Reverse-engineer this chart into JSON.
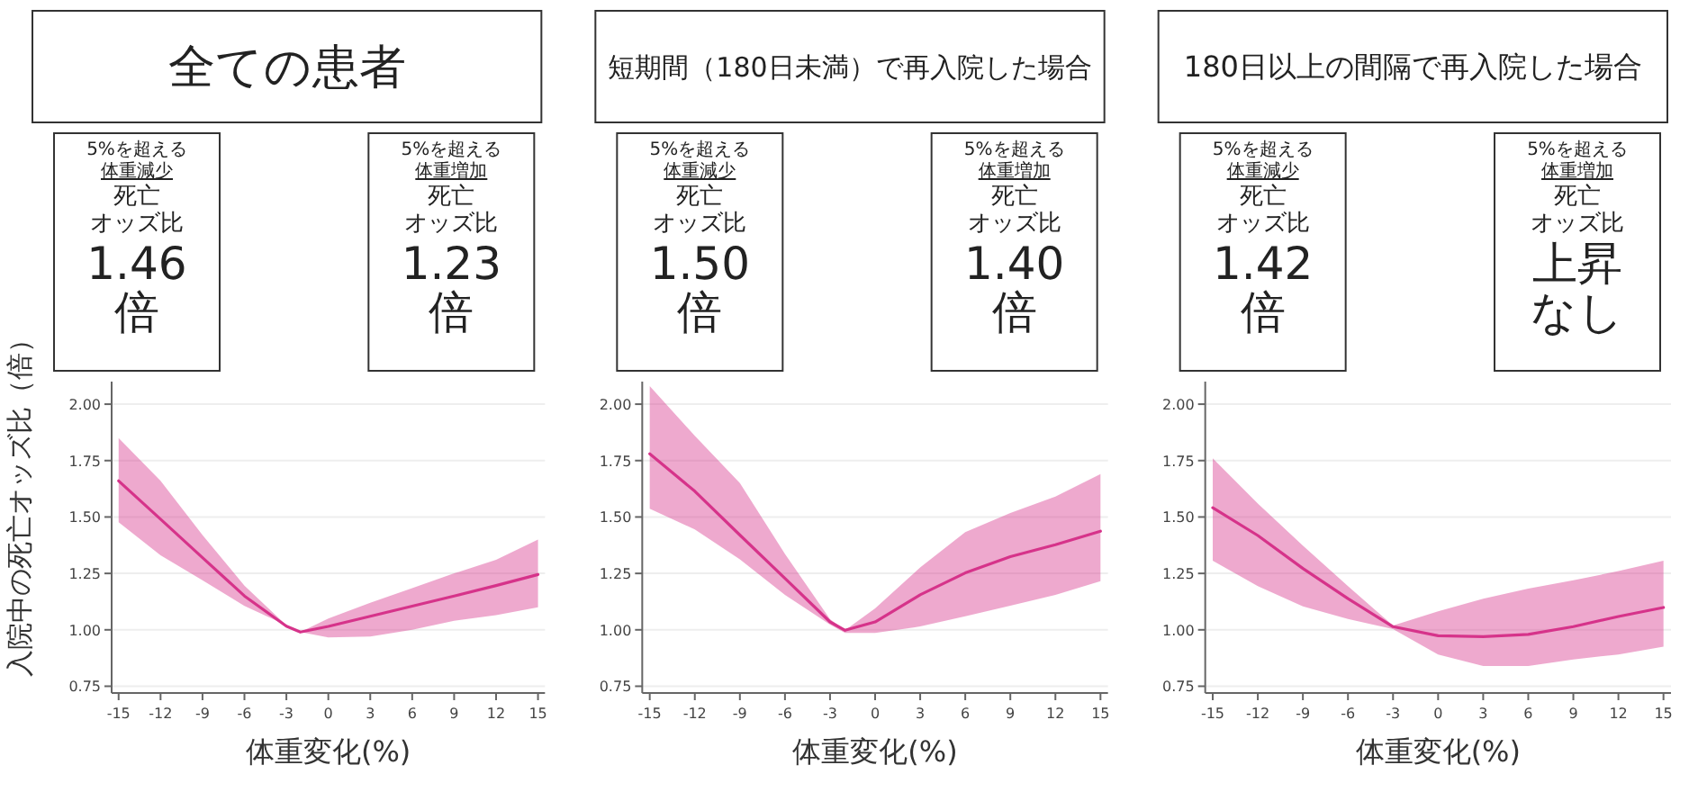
{
  "chart_data": [
    {
      "type": "line",
      "title": "全ての患者",
      "xlabel": "体重変化(%)",
      "ylabel": "入院中の死亡オッズ比（倍）",
      "grid": "y",
      "xlim": [
        -15.5,
        15.5
      ],
      "ylim": [
        0.72,
        2.1
      ],
      "xticks": [
        -15,
        -12,
        -9,
        -6,
        -3,
        0,
        3,
        6,
        9,
        12,
        15
      ],
      "yticks": [
        {
          "value": 0.75,
          "label": "0.75"
        },
        {
          "value": 1.0,
          "label": "1.00"
        },
        {
          "value": 1.25,
          "label": "1.25"
        },
        {
          "value": 1.5,
          "label": "1.50"
        },
        {
          "value": 1.75,
          "label": "1.75"
        },
        {
          "value": 2.0,
          "label": "2.00"
        }
      ],
      "annotations": [
        "5%を超える",
        "体重減少",
        "死亡",
        "オッズ比",
        "1.46",
        "倍",
        "5%を超える",
        "体重増加",
        "死亡",
        "オッズ比",
        "1.23",
        "倍"
      ],
      "series": [
        {
          "color": "#d6338a",
          "x": [
            -15,
            -12,
            -9,
            -6,
            -3,
            -2,
            0,
            3,
            6,
            9,
            12,
            15
          ],
          "values": [
            1.66,
            1.49,
            1.32,
            1.15,
            1.016,
            0.99,
            1.015,
            1.06,
            1.105,
            1.15,
            1.196,
            1.245
          ],
          "lower": [
            1.477,
            1.33,
            1.22,
            1.106,
            1.02,
            0.99,
            0.966,
            0.97,
            1.0,
            1.04,
            1.065,
            1.1
          ],
          "upper": [
            1.85,
            1.66,
            1.42,
            1.196,
            1.02,
            0.99,
            1.05,
            1.12,
            1.185,
            1.25,
            1.31,
            1.4
          ]
        }
      ]
    },
    {
      "type": "line",
      "title": "短期間（180日未満）で再入院した場合",
      "xlabel": "体重変化(%)",
      "grid": "y",
      "xlim": [
        -15.5,
        15.5
      ],
      "ylim": [
        0.72,
        2.1
      ],
      "xticks": [
        -15,
        -12,
        -9,
        -6,
        -3,
        0,
        3,
        6,
        9,
        12,
        15
      ],
      "yticks": [
        {
          "value": 0.75,
          "label": "0.75"
        },
        {
          "value": 1.0,
          "label": "1.00"
        },
        {
          "value": 1.25,
          "label": "1.25"
        },
        {
          "value": 1.5,
          "label": "1.50"
        },
        {
          "value": 1.75,
          "label": "1.75"
        },
        {
          "value": 2.0,
          "label": "2.00"
        }
      ],
      "annotations": [
        "5%を超える",
        "体重減少",
        "死亡",
        "オッズ比",
        "1.50",
        "倍",
        "5%を超える",
        "体重増加",
        "死亡",
        "オッズ比",
        "1.40",
        "倍"
      ],
      "series": [
        {
          "color": "#d6338a",
          "x": [
            -15,
            -12,
            -9,
            -6,
            -3,
            -2,
            0,
            3,
            6,
            9,
            12,
            15
          ],
          "values": [
            1.78,
            1.614,
            1.42,
            1.228,
            1.035,
            0.998,
            1.035,
            1.155,
            1.252,
            1.324,
            1.377,
            1.437
          ],
          "lower": [
            1.537,
            1.445,
            1.312,
            1.155,
            1.023,
            0.986,
            0.986,
            1.015,
            1.06,
            1.107,
            1.155,
            1.216
          ],
          "upper": [
            2.08,
            1.86,
            1.65,
            1.336,
            1.047,
            0.998,
            1.095,
            1.276,
            1.433,
            1.518,
            1.59,
            1.69
          ]
        }
      ]
    },
    {
      "type": "line",
      "title": "180日以上の間隔で再入院した場合",
      "xlabel": "体重変化(%)",
      "grid": "y",
      "xlim": [
        -15.5,
        15.5
      ],
      "ylim": [
        0.72,
        2.1
      ],
      "xticks": [
        -15,
        -12,
        -9,
        -6,
        -3,
        0,
        3,
        6,
        9,
        12,
        15
      ],
      "yticks": [
        {
          "value": 0.75,
          "label": "0.75"
        },
        {
          "value": 1.0,
          "label": "1.00"
        },
        {
          "value": 1.25,
          "label": "1.25"
        },
        {
          "value": 1.5,
          "label": "1.50"
        },
        {
          "value": 1.75,
          "label": "1.75"
        },
        {
          "value": 2.0,
          "label": "2.00"
        }
      ],
      "annotations": [
        "5%を超える",
        "体重減少",
        "死亡",
        "オッズ比",
        "1.42",
        "倍",
        "5%を超える",
        "体重増加",
        "死亡",
        "オッズ比",
        "上昇",
        "なし"
      ],
      "series": [
        {
          "color": "#d6338a",
          "x": [
            -15,
            -12,
            -9,
            -6,
            -3,
            0,
            3,
            6,
            9,
            12,
            15
          ],
          "values": [
            1.541,
            1.418,
            1.272,
            1.138,
            1.014,
            0.974,
            0.97,
            0.98,
            1.014,
            1.059,
            1.099
          ],
          "lower": [
            1.306,
            1.194,
            1.104,
            1.048,
            1.003,
            0.891,
            0.84,
            0.84,
            0.869,
            0.891,
            0.925
          ],
          "upper": [
            1.76,
            1.56,
            1.373,
            1.194,
            1.019,
            1.082,
            1.138,
            1.183,
            1.22,
            1.26,
            1.306
          ]
        }
      ]
    }
  ]
}
